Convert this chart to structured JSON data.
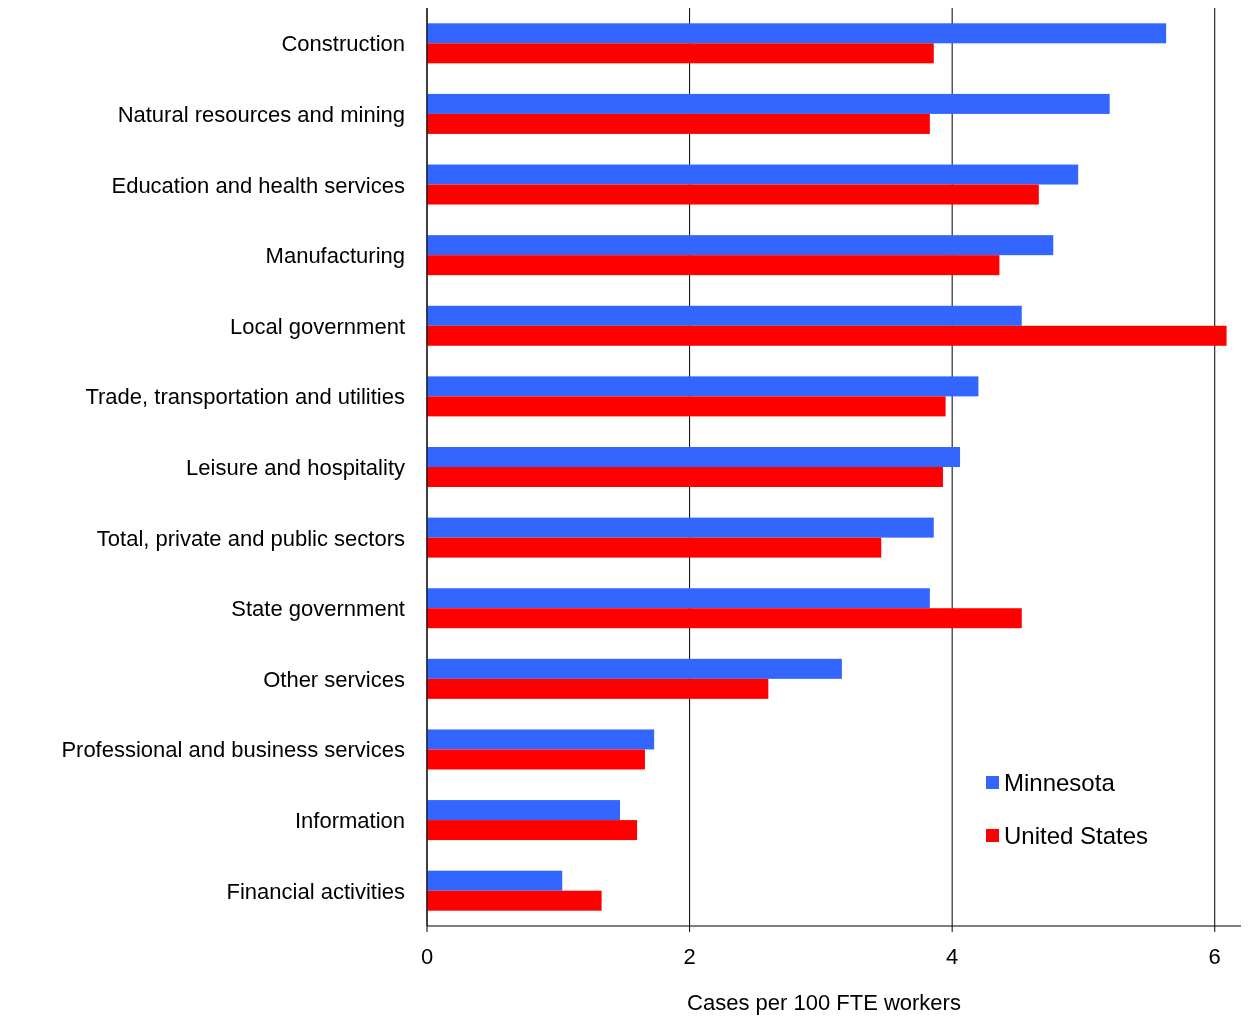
{
  "chart_data": {
    "type": "bar",
    "orientation": "horizontal",
    "xlabel": "Cases per 100 FTE workers",
    "categories": [
      "Construction",
      "Natural resources and mining",
      "Education and health services",
      "Manufacturing",
      "Local government",
      "Trade, transportation and utilities",
      "Leisure and hospitality",
      "Total, private and public sectors",
      "State government",
      "Other services",
      "Professional and business services",
      "Information",
      "Financial activities"
    ],
    "series": [
      {
        "name": "Minnesota",
        "color": "#3366ff",
        "values": [
          5.63,
          5.2,
          4.96,
          4.77,
          4.53,
          4.2,
          4.06,
          3.86,
          3.83,
          3.16,
          1.73,
          1.47,
          1.03
        ]
      },
      {
        "name": "United States",
        "color": "#ff0000",
        "values": [
          3.86,
          3.83,
          4.66,
          4.36,
          6.09,
          3.95,
          3.93,
          3.46,
          4.53,
          2.6,
          1.66,
          1.6,
          1.33
        ]
      }
    ],
    "xlim": [
      0,
      6.2
    ],
    "xticks": [
      0,
      2,
      4,
      6
    ],
    "grid": "x",
    "legend": "bottom right"
  }
}
